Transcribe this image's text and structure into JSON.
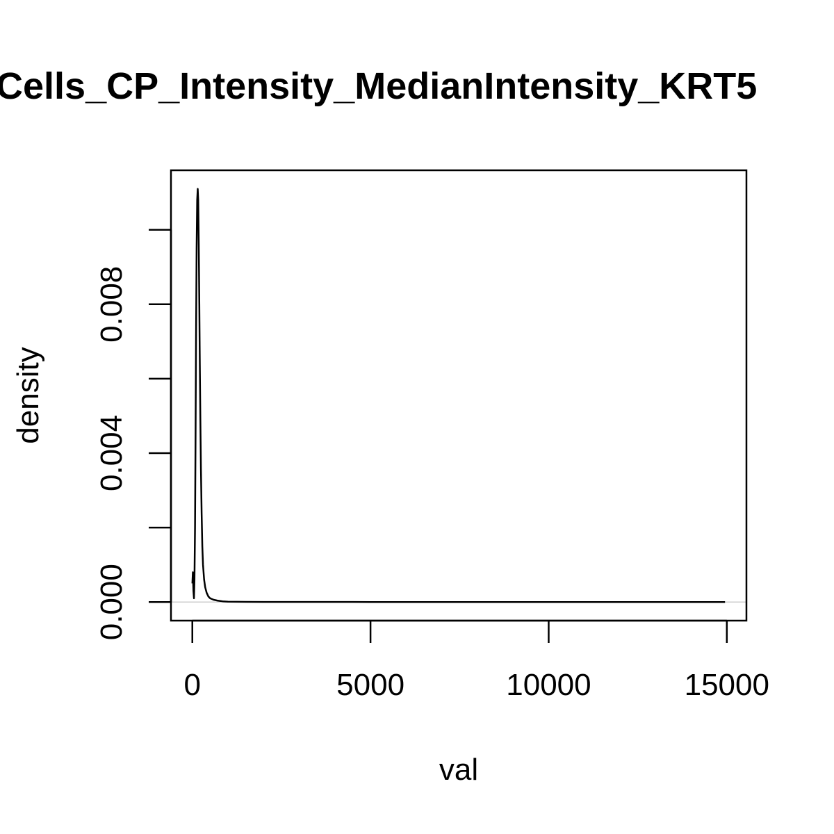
{
  "chart_data": {
    "type": "line",
    "title": "Cells_CP_Intensity_MedianIntensity_KRT5",
    "xlabel": "val",
    "ylabel": "density",
    "xlim": [
      -600,
      15550
    ],
    "ylim": [
      -0.0005,
      0.0116
    ],
    "x_ticks": [
      0,
      5000,
      10000,
      15000
    ],
    "x_tick_labels": [
      "0",
      "5000",
      "10000",
      "15000"
    ],
    "y_ticks": [
      0.0,
      0.002,
      0.004,
      0.006,
      0.008,
      0.01
    ],
    "y_tick_labels": [
      "0.000",
      "",
      "0.004",
      "",
      "0.008",
      ""
    ],
    "grid": false,
    "baseline": 0,
    "series": [
      {
        "x": [
          0,
          15,
          30,
          45,
          60,
          75,
          90,
          105,
          120,
          135,
          150,
          165,
          180,
          195,
          210,
          225,
          240,
          260,
          280,
          300,
          330,
          360,
          400,
          450,
          500,
          600,
          700,
          850,
          1000,
          1500,
          2000,
          3000,
          5000,
          7500,
          10000,
          12500,
          14950
        ],
        "y": [
          0.0005,
          0.0008,
          0.0003,
          0.0001,
          0.0006,
          0.002,
          0.0045,
          0.0072,
          0.0095,
          0.0108,
          0.0111,
          0.0108,
          0.0096,
          0.008,
          0.0064,
          0.0049,
          0.0036,
          0.0024,
          0.0015,
          0.001,
          0.0006,
          0.0004,
          0.00025,
          0.00015,
          0.0001,
          6e-05,
          4e-05,
          2e-05,
          1e-05,
          5e-06,
          3e-06,
          2e-06,
          1e-06,
          5e-07,
          3e-07,
          2e-07,
          0.0
        ]
      }
    ]
  }
}
